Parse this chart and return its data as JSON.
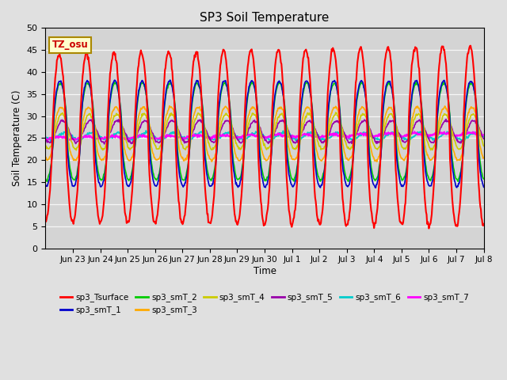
{
  "title": "SP3 Soil Temperature",
  "xlabel": "Time",
  "ylabel": "Soil Temperature (C)",
  "ylim": [
    0,
    50
  ],
  "yticks": [
    0,
    5,
    10,
    15,
    20,
    25,
    30,
    35,
    40,
    45,
    50
  ],
  "tz_label": "TZ_osu",
  "series_colors": {
    "sp3_Tsurface": "#ff0000",
    "sp3_smT_1": "#0000cc",
    "sp3_smT_2": "#00cc00",
    "sp3_smT_3": "#ffaa00",
    "sp3_smT_4": "#cccc00",
    "sp3_smT_5": "#9900aa",
    "sp3_smT_6": "#00cccc",
    "sp3_smT_7": "#ff00ff"
  },
  "tick_labels": [
    "Jun 23",
    "Jun 24",
    "Jun 25",
    "Jun 26",
    "Jun 27",
    "Jun 28",
    "Jun 29",
    "Jun 30",
    "Jul 1",
    "Jul 2",
    "Jul 3",
    "Jul 4",
    "Jul 5",
    "Jul 6",
    "Jul 7",
    "Jul 8"
  ],
  "background_color": "#e0e0e0",
  "plot_bg_color": "#d4d4d4",
  "n_days": 16,
  "seed": 42
}
